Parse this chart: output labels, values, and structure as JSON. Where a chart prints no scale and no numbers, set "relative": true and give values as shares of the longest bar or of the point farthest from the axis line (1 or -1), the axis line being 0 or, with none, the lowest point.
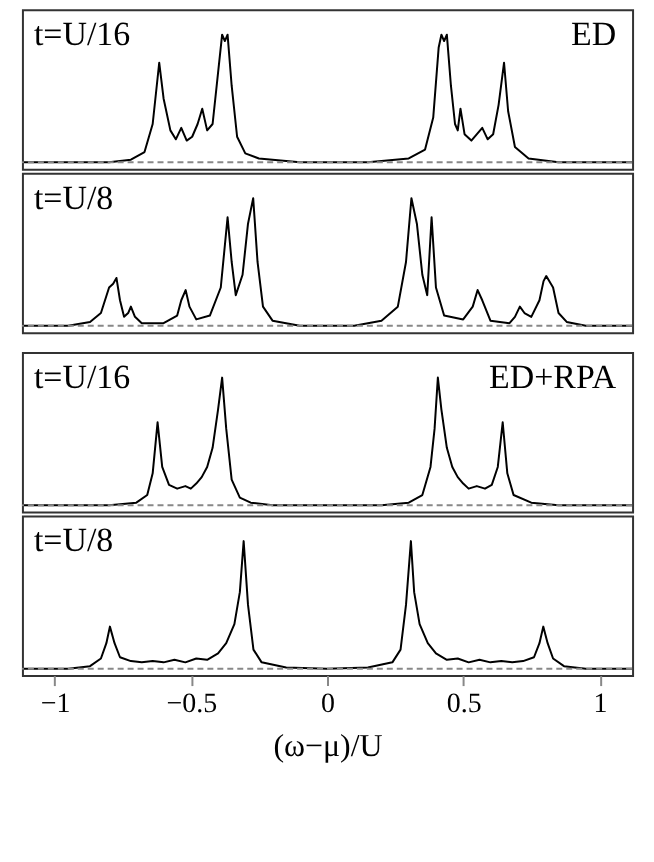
{
  "chart_data": [
    {
      "type": "line",
      "relative": true,
      "line_style": "solid",
      "xlim": [
        -1.12,
        1.12
      ],
      "tick_labels": false,
      "annotations": [
        "t=U/16",
        "ED"
      ],
      "ref_lines": [
        {
          "axis": "y",
          "value": 0,
          "color": "#888888",
          "line_style": "dashed"
        }
      ],
      "series": [
        {
          "color": "#000000",
          "x": [
            -1.12,
            -0.8,
            -0.72,
            -0.67,
            -0.64,
            -0.616,
            -0.6,
            -0.575,
            -0.555,
            -0.535,
            -0.515,
            -0.495,
            -0.475,
            -0.458,
            -0.44,
            -0.42,
            -0.4,
            -0.385,
            -0.375,
            -0.365,
            -0.35,
            -0.33,
            -0.3,
            -0.25,
            -0.1,
            0,
            0.15,
            0.3,
            0.36,
            0.39,
            0.41,
            0.42,
            0.43,
            0.44,
            0.455,
            0.47,
            0.48,
            0.49,
            0.505,
            0.53,
            0.57,
            0.59,
            0.61,
            0.63,
            0.65,
            0.665,
            0.69,
            0.74,
            0.85,
            1.12
          ],
          "values": [
            0,
            0,
            0.02,
            0.08,
            0.3,
            0.78,
            0.5,
            0.25,
            0.18,
            0.27,
            0.17,
            0.2,
            0.3,
            0.42,
            0.25,
            0.3,
            0.7,
            1.0,
            0.95,
            1.0,
            0.6,
            0.2,
            0.07,
            0.03,
            0,
            0,
            0,
            0.03,
            0.1,
            0.35,
            0.9,
            1.0,
            0.95,
            1.0,
            0.6,
            0.3,
            0.25,
            0.42,
            0.22,
            0.17,
            0.27,
            0.18,
            0.22,
            0.45,
            0.78,
            0.4,
            0.12,
            0.03,
            0,
            0
          ]
        }
      ]
    },
    {
      "type": "line",
      "relative": true,
      "line_style": "solid",
      "xlim": [
        -1.12,
        1.12
      ],
      "tick_labels": false,
      "annotations": [
        "t=U/8"
      ],
      "ref_lines": [
        {
          "axis": "y",
          "value": 0,
          "color": "#888888",
          "line_style": "dashed"
        }
      ],
      "series": [
        {
          "color": "#000000",
          "x": [
            -1.12,
            -0.95,
            -0.87,
            -0.83,
            -0.8,
            -0.785,
            -0.773,
            -0.76,
            -0.745,
            -0.73,
            -0.72,
            -0.705,
            -0.68,
            -0.6,
            -0.55,
            -0.535,
            -0.519,
            -0.505,
            -0.48,
            -0.43,
            -0.39,
            -0.365,
            -0.35,
            -0.335,
            -0.31,
            -0.29,
            -0.271,
            -0.255,
            -0.235,
            -0.2,
            -0.1,
            0,
            0.1,
            0.2,
            0.26,
            0.29,
            0.31,
            0.33,
            0.35,
            0.368,
            0.384,
            0.4,
            0.43,
            0.5,
            0.535,
            0.553,
            0.57,
            0.6,
            0.67,
            0.69,
            0.708,
            0.725,
            0.75,
            0.78,
            0.795,
            0.805,
            0.83,
            0.85,
            0.88,
            0.95,
            1.12
          ],
          "values": [
            0,
            0,
            0.03,
            0.1,
            0.3,
            0.33,
            0.375,
            0.2,
            0.07,
            0.1,
            0.15,
            0.07,
            0.02,
            0.02,
            0.08,
            0.2,
            0.28,
            0.15,
            0.05,
            0.08,
            0.3,
            0.85,
            0.5,
            0.24,
            0.4,
            0.8,
            1.0,
            0.5,
            0.15,
            0.04,
            0,
            0,
            0,
            0.04,
            0.15,
            0.5,
            1.0,
            0.8,
            0.4,
            0.24,
            0.85,
            0.3,
            0.08,
            0.05,
            0.15,
            0.28,
            0.2,
            0.04,
            0.02,
            0.07,
            0.15,
            0.1,
            0.07,
            0.2,
            0.35,
            0.39,
            0.3,
            0.1,
            0.03,
            0,
            0
          ]
        }
      ]
    },
    {
      "type": "line",
      "relative": true,
      "line_style": "solid",
      "xlim": [
        -1.12,
        1.12
      ],
      "tick_labels": false,
      "annotations": [
        "t=U/16",
        "ED+RPA"
      ],
      "ref_lines": [
        {
          "axis": "y",
          "value": 0,
          "color": "#888888",
          "line_style": "dashed"
        }
      ],
      "series": [
        {
          "color": "#000000",
          "x": [
            -1.12,
            -0.8,
            -0.7,
            -0.66,
            -0.64,
            -0.622,
            -0.605,
            -0.58,
            -0.55,
            -0.52,
            -0.5,
            -0.48,
            -0.46,
            -0.44,
            -0.42,
            -0.4,
            -0.385,
            -0.37,
            -0.35,
            -0.32,
            -0.28,
            -0.2,
            0,
            0.2,
            0.3,
            0.35,
            0.38,
            0.395,
            0.407,
            0.42,
            0.44,
            0.46,
            0.48,
            0.5,
            0.52,
            0.55,
            0.58,
            0.605,
            0.627,
            0.645,
            0.662,
            0.685,
            0.75,
            0.85,
            1.12
          ],
          "values": [
            0,
            0,
            0.02,
            0.08,
            0.25,
            0.65,
            0.3,
            0.16,
            0.13,
            0.15,
            0.13,
            0.17,
            0.22,
            0.3,
            0.45,
            0.75,
            1.0,
            0.6,
            0.2,
            0.06,
            0.02,
            0,
            0,
            0,
            0.02,
            0.08,
            0.3,
            0.6,
            1.0,
            0.75,
            0.45,
            0.3,
            0.22,
            0.17,
            0.13,
            0.15,
            0.13,
            0.16,
            0.3,
            0.65,
            0.25,
            0.08,
            0.02,
            0,
            0
          ]
        }
      ]
    },
    {
      "type": "line",
      "relative": true,
      "line_style": "solid",
      "xlim": [
        -1.12,
        1.12
      ],
      "xticks": [
        {
          "value": -1,
          "label": "−1"
        },
        {
          "value": -0.5,
          "label": "−0.5"
        },
        {
          "value": 0,
          "label": "0"
        },
        {
          "value": 0.5,
          "label": "0.5"
        },
        {
          "value": 1,
          "label": "1"
        }
      ],
      "tick_labels": "x",
      "xlabel": "(ω−μ)/U",
      "annotations": [
        "t=U/8"
      ],
      "ref_lines": [
        {
          "axis": "y",
          "value": 0,
          "color": "#888888",
          "line_style": "dashed"
        }
      ],
      "series": [
        {
          "color": "#000000",
          "x": [
            -1.12,
            -0.95,
            -0.87,
            -0.83,
            -0.81,
            -0.797,
            -0.78,
            -0.76,
            -0.72,
            -0.68,
            -0.64,
            -0.6,
            -0.56,
            -0.52,
            -0.48,
            -0.44,
            -0.4,
            -0.37,
            -0.34,
            -0.32,
            -0.306,
            -0.29,
            -0.27,
            -0.24,
            -0.15,
            0,
            0.15,
            0.24,
            0.27,
            0.29,
            0.308,
            0.32,
            0.34,
            0.37,
            0.4,
            0.44,
            0.48,
            0.52,
            0.56,
            0.6,
            0.64,
            0.68,
            0.72,
            0.76,
            0.78,
            0.794,
            0.81,
            0.83,
            0.87,
            0.95,
            1.12
          ],
          "values": [
            0,
            0,
            0.02,
            0.08,
            0.2,
            0.33,
            0.2,
            0.09,
            0.06,
            0.05,
            0.06,
            0.05,
            0.07,
            0.05,
            0.08,
            0.07,
            0.12,
            0.2,
            0.35,
            0.6,
            1.0,
            0.5,
            0.15,
            0.05,
            0.01,
            0,
            0.01,
            0.05,
            0.15,
            0.5,
            1.0,
            0.6,
            0.35,
            0.2,
            0.12,
            0.07,
            0.08,
            0.05,
            0.07,
            0.05,
            0.06,
            0.05,
            0.06,
            0.09,
            0.2,
            0.33,
            0.2,
            0.08,
            0.02,
            0,
            0
          ]
        }
      ]
    }
  ]
}
